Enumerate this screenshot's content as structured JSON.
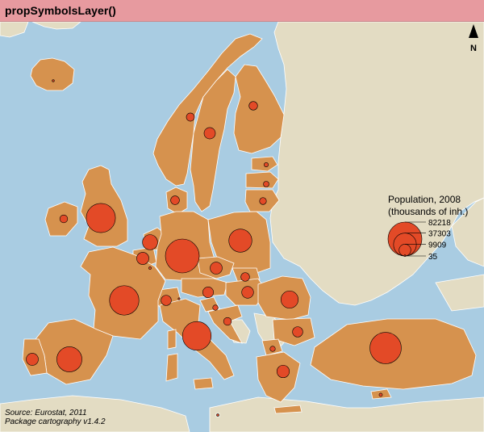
{
  "title": "propSymbolsLayer()",
  "north_arrow_label": "N",
  "legend": {
    "title_line1": "Population, 2008",
    "title_line2": "(thousands of inh.)",
    "values": [
      "82218",
      "37303",
      "9909",
      "35"
    ]
  },
  "source": {
    "line1": "Source: Eurostat, 2011",
    "line2": "Package cartography v1.4.2"
  },
  "colors": {
    "sea": "#a9cce2",
    "land_other": "#e3dcc3",
    "land_countries": "#d6924e",
    "symbol_fill": "#e34a27",
    "borders": "#ffffff",
    "title_bar": "#e79a9f"
  },
  "symbols": [
    {
      "country": "Germany",
      "value": 82218
    },
    {
      "country": "Turkey",
      "value": 70586
    },
    {
      "country": "France",
      "value": 62000
    },
    {
      "country": "United Kingdom",
      "value": 61000
    },
    {
      "country": "Italy",
      "value": 59000
    },
    {
      "country": "Spain",
      "value": 45300
    },
    {
      "country": "Poland",
      "value": 38100
    },
    {
      "country": "Romania",
      "value": 21500
    },
    {
      "country": "Netherlands",
      "value": 16400
    },
    {
      "country": "Greece",
      "value": 11200
    },
    {
      "country": "Belgium",
      "value": 10700
    },
    {
      "country": "Portugal",
      "value": 10600
    },
    {
      "country": "Czech Republic",
      "value": 10400
    },
    {
      "country": "Hungary",
      "value": 10000
    },
    {
      "country": "Sweden",
      "value": 9200
    },
    {
      "country": "Austria",
      "value": 8300
    },
    {
      "country": "Switzerland",
      "value": 7600
    },
    {
      "country": "Bulgaria",
      "value": 7600
    },
    {
      "country": "Denmark",
      "value": 5500
    },
    {
      "country": "Slovakia",
      "value": 5400
    },
    {
      "country": "Finland",
      "value": 5300
    },
    {
      "country": "Norway",
      "value": 4700
    },
    {
      "country": "Ireland",
      "value": 4400
    },
    {
      "country": "Croatia",
      "value": 4400
    },
    {
      "country": "Lithuania",
      "value": 3400
    },
    {
      "country": "Latvia",
      "value": 2300
    },
    {
      "country": "FYROM",
      "value": 2000
    },
    {
      "country": "Slovenia",
      "value": 2000
    },
    {
      "country": "Estonia",
      "value": 1340
    },
    {
      "country": "Cyprus",
      "value": 790
    },
    {
      "country": "Luxembourg",
      "value": 480
    },
    {
      "country": "Malta",
      "value": 410
    },
    {
      "country": "Iceland",
      "value": 320
    },
    {
      "country": "Liechtenstein",
      "value": 35
    }
  ]
}
